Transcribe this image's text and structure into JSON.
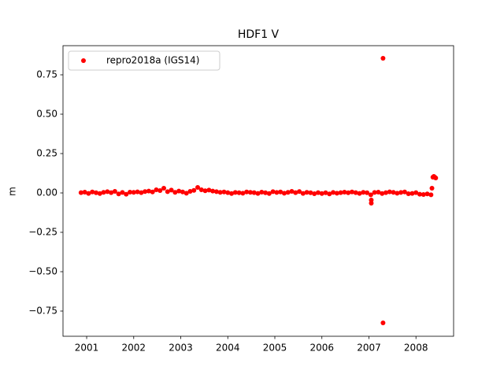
{
  "chart_data": {
    "type": "scatter",
    "title": "HDF1 V",
    "y_label": "m",
    "xlim": [
      2000.497,
      2008.8
    ],
    "ylim": [
      -0.91,
      0.935
    ],
    "xticks": [
      2001,
      2002,
      2003,
      2004,
      2005,
      2006,
      2007,
      2008
    ],
    "yticks": [
      {
        "value": -0.75,
        "label": "−0.75"
      },
      {
        "value": -0.5,
        "label": "−0.50"
      },
      {
        "value": -0.25,
        "label": "−0.25"
      },
      {
        "value": 0,
        "label": "0.00"
      },
      {
        "value": 0.25,
        "label": "0.25"
      },
      {
        "value": 0.5,
        "label": "0.50"
      },
      0.75
    ],
    "grid": false,
    "legend": "upper left",
    "series": [
      {
        "name": "repro2018a (IGS14)",
        "color": "#ff0000",
        "x": [
          2000.88,
          2000.96,
          2001.04,
          2001.12,
          2001.2,
          2001.28,
          2001.36,
          2001.44,
          2001.52,
          2001.6,
          2001.68,
          2001.76,
          2001.84,
          2001.92,
          2002.0,
          2002.08,
          2002.16,
          2002.24,
          2002.32,
          2002.4,
          2002.48,
          2002.56,
          2002.64,
          2002.72,
          2002.8,
          2002.88,
          2002.96,
          2003.04,
          2003.12,
          2003.2,
          2003.28,
          2003.36,
          2003.44,
          2003.52,
          2003.6,
          2003.68,
          2003.76,
          2003.84,
          2003.92,
          2004.0,
          2004.08,
          2004.16,
          2004.24,
          2004.32,
          2004.4,
          2004.48,
          2004.56,
          2004.64,
          2004.72,
          2004.8,
          2004.88,
          2004.96,
          2005.04,
          2005.12,
          2005.2,
          2005.28,
          2005.36,
          2005.44,
          2005.52,
          2005.6,
          2005.68,
          2005.76,
          2005.84,
          2005.92,
          2006.0,
          2006.08,
          2006.16,
          2006.24,
          2006.32,
          2006.4,
          2006.48,
          2006.56,
          2006.64,
          2006.72,
          2006.8,
          2006.88,
          2006.96,
          2007.04,
          2007.12,
          2007.2,
          2007.28,
          2007.36,
          2007.44,
          2007.52,
          2007.6,
          2007.68,
          2007.76,
          2007.84,
          2007.92,
          2008.0,
          2008.08,
          2008.16,
          2008.24,
          2008.32,
          2007.05,
          2007.05,
          2007.3,
          2007.3,
          2008.34,
          2008.36,
          2008.38,
          2008.4,
          2008.42
        ],
        "values": [
          0.002,
          0.005,
          -0.003,
          0.006,
          0.001,
          -0.004,
          0.004,
          0.008,
          0.002,
          0.01,
          -0.006,
          0.003,
          -0.008,
          0.005,
          0.004,
          0.007,
          0.002,
          0.009,
          0.012,
          0.006,
          0.02,
          0.015,
          0.03,
          0.008,
          0.018,
          0.004,
          0.012,
          0.006,
          -0.002,
          0.01,
          0.016,
          0.035,
          0.02,
          0.014,
          0.018,
          0.012,
          0.008,
          0.004,
          0.006,
          0.002,
          -0.004,
          0.003,
          0.001,
          -0.002,
          0.006,
          0.004,
          0.002,
          -0.003,
          0.005,
          0.001,
          -0.004,
          0.008,
          0.003,
          0.006,
          -0.002,
          0.004,
          0.01,
          0.002,
          0.009,
          -0.003,
          0.004,
          0.001,
          -0.005,
          0.002,
          -0.004,
          0.001,
          -0.006,
          0.003,
          -0.002,
          0.002,
          0.005,
          0.001,
          0.006,
          0.002,
          -0.003,
          0.004,
          0.001,
          -0.012,
          0.003,
          0.005,
          -0.004,
          0.002,
          0.007,
          0.004,
          -0.002,
          0.003,
          0.006,
          -0.005,
          -0.003,
          0.002,
          -0.008,
          -0.01,
          -0.006,
          -0.012,
          -0.065,
          -0.045,
          0.855,
          -0.825,
          0.03,
          0.1,
          0.105,
          0.1,
          0.095
        ]
      }
    ]
  }
}
